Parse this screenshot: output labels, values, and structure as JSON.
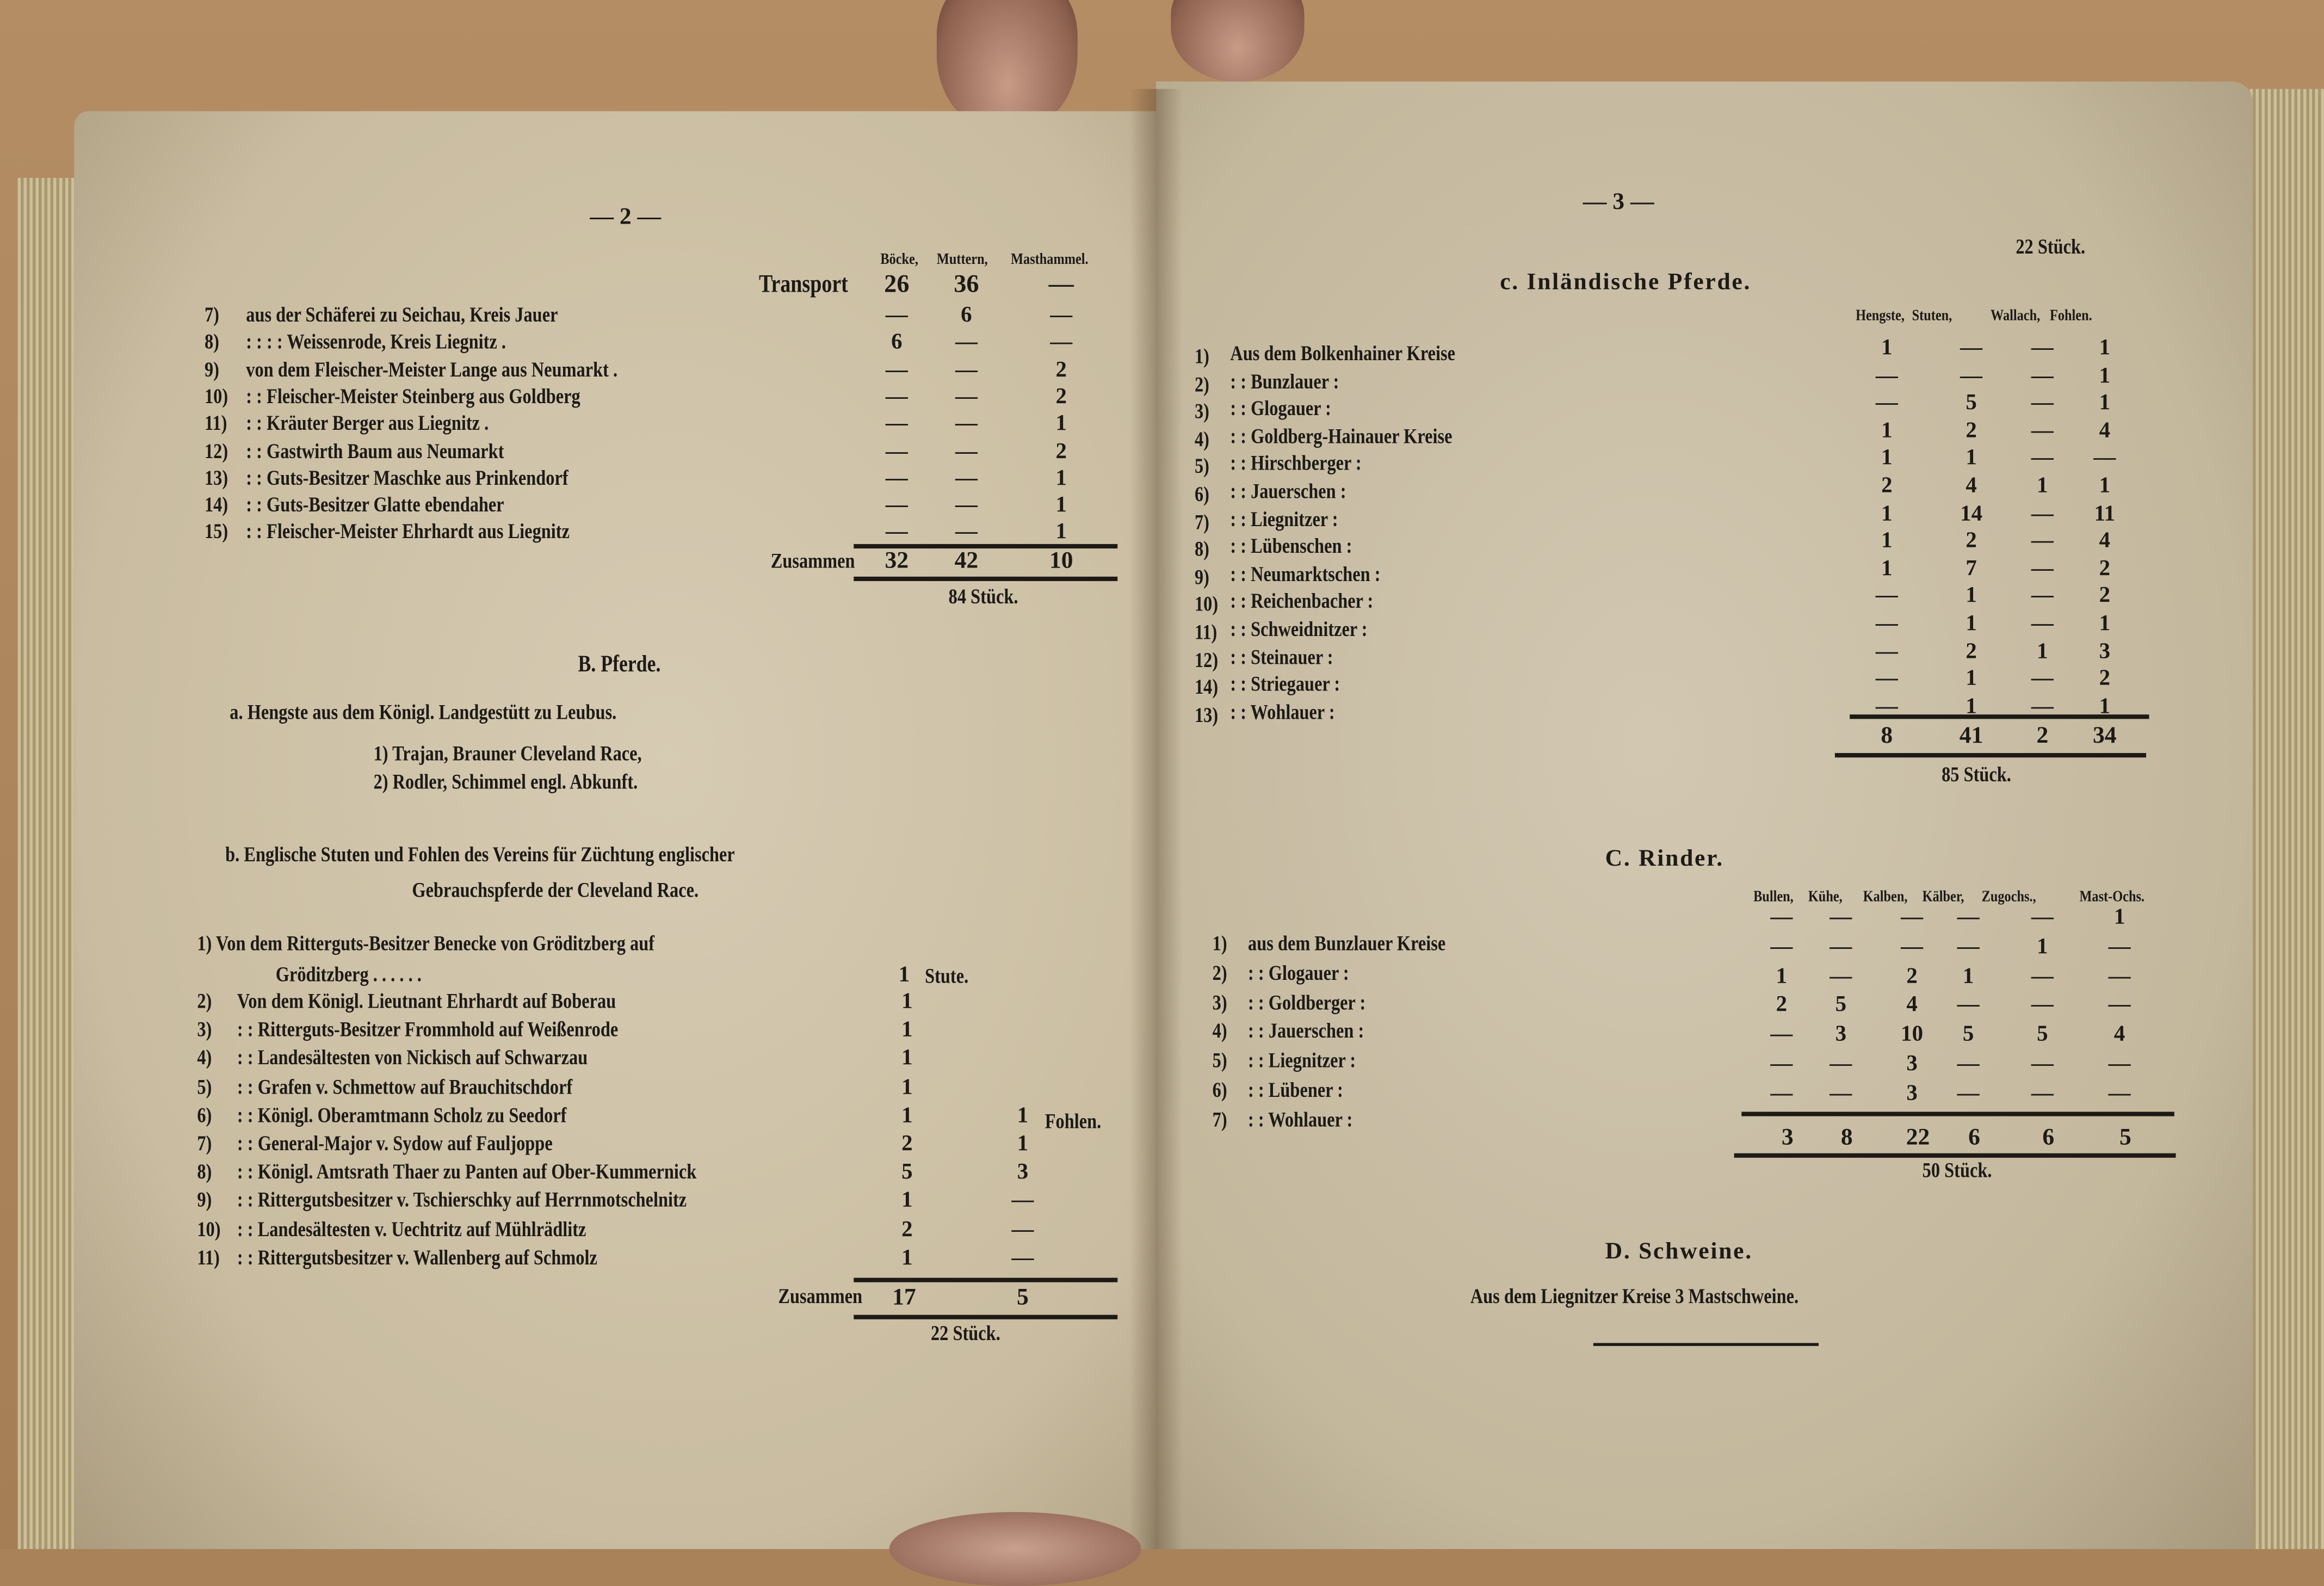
{
  "colors": {
    "paper": "#cfc3aa",
    "ink": "#1d1a16",
    "wood": "#a9825a"
  },
  "left_page": {
    "page_number": "— 2 —",
    "sheep": {
      "columns": [
        "Böcke,",
        "Muttern,",
        "Masthammel."
      ],
      "transport": {
        "label": "Transport",
        "values": [
          "26",
          "36",
          "—"
        ]
      },
      "rows": [
        {
          "no": "7)",
          "text": "aus der Schäferei zu Seichau, Kreis Jauer",
          "values": [
            "—",
            "6",
            "—"
          ]
        },
        {
          "no": "8)",
          "text": ": : : : Weissenrode, Kreis Liegnitz .",
          "values": [
            "6",
            "—",
            "—"
          ]
        },
        {
          "no": "9)",
          "text": "von dem Fleischer-Meister Lange aus Neumarkt .",
          "values": [
            "—",
            "—",
            "2"
          ]
        },
        {
          "no": "10)",
          "text": ": : Fleischer-Meister Steinberg aus Goldberg",
          "values": [
            "—",
            "—",
            "2"
          ]
        },
        {
          "no": "11)",
          "text": ": : Kräuter Berger aus Liegnitz .",
          "values": [
            "—",
            "—",
            "1"
          ]
        },
        {
          "no": "12)",
          "text": ": : Gastwirth Baum aus Neumarkt",
          "values": [
            "—",
            "—",
            "2"
          ]
        },
        {
          "no": "13)",
          "text": ": : Guts-Besitzer Maschke aus Prinkendorf",
          "values": [
            "—",
            "—",
            "1"
          ]
        },
        {
          "no": "14)",
          "text": ": : Guts-Besitzer Glatte ebendaher",
          "values": [
            "—",
            "—",
            "1"
          ]
        },
        {
          "no": "15)",
          "text": ": : Fleischer-Meister Ehrhardt aus Liegnitz",
          "values": [
            "—",
            "—",
            "1"
          ]
        }
      ],
      "total": {
        "label": "Zusammen",
        "values": [
          "32",
          "42",
          "10"
        ]
      },
      "grand_total": "84 Stück."
    },
    "horses_heading": "B. Pferde.",
    "stallions": {
      "heading": "a. Hengste aus dem Königl. Landgestütt zu Leubus.",
      "items": [
        "1) Trajan, Brauner Cleveland Race,",
        "2) Rodler, Schimmel engl. Abkunft."
      ]
    },
    "mares": {
      "heading_line1": "b. Englische Stuten und Fohlen des Vereins für Züchtung englischer",
      "heading_line2": "Gebrauchspferde der Cleveland Race.",
      "row1_line1": "1) Von dem Ritterguts-Besitzer Benecke von Gröditzberg auf",
      "row1_line2": "Gröditzberg . . . . . .",
      "row1_value": "1",
      "row1_unit": "Stute.",
      "fohlen_label": "Fohlen.",
      "rows": [
        {
          "no": "2)",
          "text": "Von dem Königl. Lieutnant Ehrhardt auf Boberau",
          "stuten": "1",
          "fohlen": ""
        },
        {
          "no": "3)",
          "text": ": : Ritterguts-Besitzer Frommhold auf Weißenrode",
          "stuten": "1",
          "fohlen": ""
        },
        {
          "no": "4)",
          "text": ": : Landesältesten von Nickisch auf Schwarzau",
          "stuten": "1",
          "fohlen": ""
        },
        {
          "no": "5)",
          "text": ": : Grafen v. Schmettow auf Brauchitschdorf",
          "stuten": "1",
          "fohlen": ""
        },
        {
          "no": "6)",
          "text": ": : Königl. Oberamtmann Scholz zu Seedorf",
          "stuten": "1",
          "fohlen": "1"
        },
        {
          "no": "7)",
          "text": ": : General-Major v. Sydow auf Fauljoppe",
          "stuten": "2",
          "fohlen": "1"
        },
        {
          "no": "8)",
          "text": ": : Königl. Amtsrath Thaer zu Panten auf Ober-Kummernick",
          "stuten": "5",
          "fohlen": "3"
        },
        {
          "no": "9)",
          "text": ": : Rittergutsbesitzer v. Tschierschky auf Herrnmotschelnitz",
          "stuten": "1",
          "fohlen": "—"
        },
        {
          "no": "10)",
          "text": ": : Landesältesten v. Uechtritz auf Mühlrädlitz",
          "stuten": "2",
          "fohlen": "—"
        },
        {
          "no": "11)",
          "text": ": : Rittergutsbesitzer v. Wallenberg auf Schmolz",
          "stuten": "1",
          "fohlen": "—"
        }
      ],
      "total": {
        "label": "Zusammen",
        "stuten": "17",
        "fohlen": "5"
      },
      "grand_total": "22 Stück."
    }
  },
  "right_page": {
    "page_number": "— 3 —",
    "carry": "22 Stück.",
    "inland_horses": {
      "heading": "c. Inländische Pferde.",
      "columns": [
        "Hengste,",
        "Stuten,",
        "Wallach,",
        "Fohlen."
      ],
      "rows": [
        {
          "no": "1)",
          "text": "Aus dem Bolkenhainer Kreise",
          "values": [
            "1",
            "—",
            "—",
            "1"
          ]
        },
        {
          "no": "2)",
          "text": ": : Bunzlauer :",
          "values": [
            "—",
            "—",
            "—",
            "1"
          ]
        },
        {
          "no": "3)",
          "text": ": : Glogauer :",
          "values": [
            "—",
            "5",
            "—",
            "1"
          ]
        },
        {
          "no": "4)",
          "text": ": : Goldberg-Hainauer Kreise",
          "values": [
            "1",
            "2",
            "—",
            "4"
          ]
        },
        {
          "no": "5)",
          "text": ": : Hirschberger :",
          "values": [
            "1",
            "1",
            "—",
            "—"
          ]
        },
        {
          "no": "6)",
          "text": ": : Jauerschen :",
          "values": [
            "2",
            "4",
            "1",
            "1"
          ]
        },
        {
          "no": "7)",
          "text": ": : Liegnitzer :",
          "values": [
            "1",
            "14",
            "—",
            "11"
          ]
        },
        {
          "no": "8)",
          "text": ": : Lübenschen :",
          "values": [
            "1",
            "2",
            "—",
            "4"
          ]
        },
        {
          "no": "9)",
          "text": ": : Neumarktschen :",
          "values": [
            "1",
            "7",
            "—",
            "2"
          ]
        },
        {
          "no": "10)",
          "text": ": : Reichenbacher :",
          "values": [
            "—",
            "1",
            "—",
            "2"
          ]
        },
        {
          "no": "11)",
          "text": ": : Schweidnitzer :",
          "values": [
            "—",
            "1",
            "—",
            "1"
          ]
        },
        {
          "no": "12)",
          "text": ": : Steinauer :",
          "values": [
            "—",
            "2",
            "1",
            "3"
          ]
        },
        {
          "no": "14)",
          "text": ": : Striegauer :",
          "values": [
            "—",
            "1",
            "—",
            "2"
          ]
        },
        {
          "no": "13)",
          "text": ": : Wohlauer :",
          "values": [
            "—",
            "1",
            "—",
            "1"
          ]
        }
      ],
      "total": [
        "8",
        "41",
        "2",
        "34"
      ],
      "grand_total": "85 Stück."
    },
    "cattle": {
      "heading": "C. Rinder.",
      "columns": [
        "Bullen,",
        "Kühe,",
        "Kalben,",
        "Kälber,",
        "Zugochs.,",
        "Mast-Ochs."
      ],
      "rows": [
        {
          "no": "1)",
          "text": "aus dem Bunzlauer Kreise",
          "values": [
            "—",
            "—",
            "—",
            "—",
            "—",
            "1"
          ]
        },
        {
          "no": "2)",
          "text": ": : Glogauer :",
          "values": [
            "—",
            "—",
            "—",
            "—",
            "1",
            "—"
          ]
        },
        {
          "no": "3)",
          "text": ": : Goldberger :",
          "values": [
            "1",
            "—",
            "2",
            "1",
            "—",
            "—"
          ]
        },
        {
          "no": "4)",
          "text": ": : Jauerschen :",
          "values": [
            "2",
            "5",
            "4",
            "—",
            "—",
            "—"
          ]
        },
        {
          "no": "5)",
          "text": ": : Liegnitzer :",
          "values": [
            "—",
            "3",
            "10",
            "5",
            "5",
            "4"
          ]
        },
        {
          "no": "6)",
          "text": ": : Lübener :",
          "values": [
            "—",
            "—",
            "3",
            "—",
            "—",
            "—"
          ]
        },
        {
          "no": "7)",
          "text": ": : Wohlauer :",
          "values": [
            "—",
            "—",
            "3",
            "—",
            "—",
            "—"
          ]
        }
      ],
      "total": [
        "3",
        "8",
        "22",
        "6",
        "6",
        "5"
      ],
      "grand_total": "50 Stück."
    },
    "pigs": {
      "heading": "D. Schweine.",
      "text": "Aus dem Liegnitzer Kreise 3 Mastschweine."
    }
  }
}
